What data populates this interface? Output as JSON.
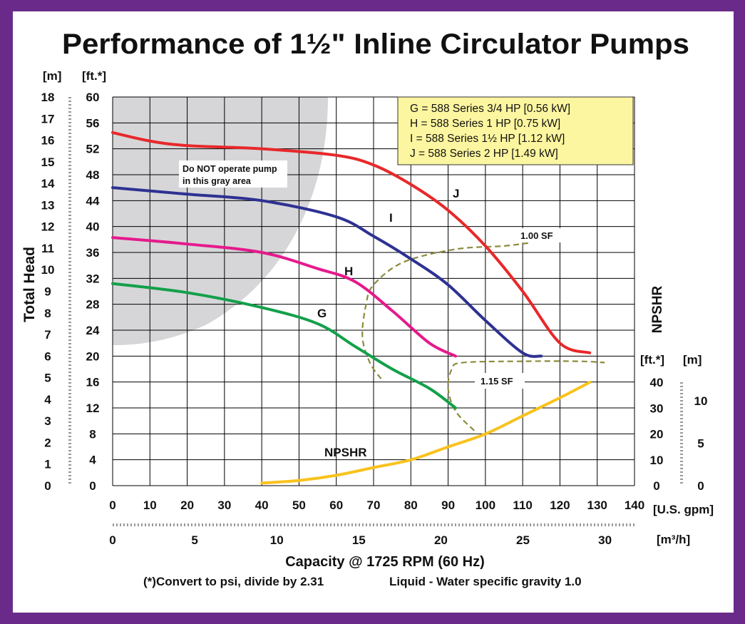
{
  "chart_data": {
    "type": "line",
    "title": "Performance of 1½\" Inline Circulator Pumps",
    "ylabel": "Total Head",
    "xlabel": "Capacity @ 1725 RPM (60 Hz)",
    "footnote_left": "(*)Convert to psi, divide by 2.31",
    "footnote_right": "Liquid - Water specific gravity 1.0",
    "x_unit": "[U.S. gpm]",
    "x2_unit": "[m³/h]",
    "y_unit_ft": "[ft.*]",
    "y_unit_m": "[m]",
    "npshr_axis_label": "NPSHR",
    "npshr_unit_ft": "[ft.*]",
    "npshr_unit_m": "[m]",
    "xlim": [
      0,
      140
    ],
    "ylim": [
      0,
      60
    ],
    "x_ticks": [
      0,
      10,
      20,
      30,
      40,
      50,
      60,
      70,
      80,
      90,
      100,
      110,
      120,
      130,
      140
    ],
    "x2_ticks": [
      0,
      5,
      10,
      15,
      20,
      25,
      30
    ],
    "y_ticks_ft": [
      0,
      4,
      8,
      12,
      16,
      20,
      24,
      28,
      32,
      36,
      40,
      44,
      48,
      52,
      56,
      60
    ],
    "y_ticks_m": [
      0,
      1,
      2,
      3,
      4,
      5,
      6,
      7,
      8,
      9,
      10,
      11,
      12,
      13,
      14,
      15,
      16,
      17,
      18
    ],
    "npshr_ticks_ft": [
      0,
      10,
      20,
      30,
      40
    ],
    "npshr_ticks_m": [
      0,
      5,
      10
    ],
    "grid": true,
    "legend": [
      "G = 588 Series  3/4 HP [0.56 kW]",
      "H = 588 Series 1 HP [0.75 kW]",
      "I = 588 Series 1½ HP [1.12 kW]",
      "J = 588 Series 2 HP [1.49 kW]"
    ],
    "legend_position": "top-right",
    "gray_area_label": [
      "Do NOT operate pump",
      "in this gray area"
    ],
    "series": [
      {
        "name": "J",
        "color": "#e8282a",
        "x": [
          0,
          10,
          20,
          40,
          60,
          70,
          80,
          90,
          100,
          110,
          120,
          128
        ],
        "y": [
          54.5,
          53.2,
          52.5,
          52,
          51,
          49.5,
          46.5,
          42.5,
          37,
          30,
          22,
          20.5
        ]
      },
      {
        "name": "I",
        "color": "#2e3192",
        "x": [
          0,
          20,
          40,
          60,
          70,
          80,
          90,
          100,
          110,
          115
        ],
        "y": [
          46,
          45,
          44,
          41.5,
          38.5,
          35,
          31,
          25.5,
          20.5,
          20
        ]
      },
      {
        "name": "H",
        "color": "#e6198c",
        "x": [
          0,
          20,
          40,
          55,
          65,
          75,
          85,
          92
        ],
        "y": [
          38.3,
          37.3,
          36,
          33.5,
          31.5,
          27,
          22,
          20
        ]
      },
      {
        "name": "G",
        "color": "#13a04a",
        "x": [
          0,
          20,
          40,
          55,
          65,
          75,
          85,
          92
        ],
        "y": [
          31.2,
          29.8,
          27.5,
          25,
          21.5,
          18,
          15,
          12
        ]
      },
      {
        "name": "NPSHR",
        "color": "#f9c21d",
        "axis": "npshr_ft",
        "x": [
          40,
          50,
          60,
          70,
          80,
          90,
          100,
          110,
          120,
          128
        ],
        "y": [
          1,
          2,
          4,
          7,
          10,
          15,
          20,
          27,
          34,
          40
        ]
      }
    ],
    "sf_lines": [
      {
        "label": "1.00 SF",
        "color": "#8c8c3c",
        "x": [
          72,
          69,
          67,
          68,
          70,
          78,
          92,
          105,
          112
        ],
        "y": [
          16.5,
          19,
          23,
          28,
          31,
          34.5,
          36.5,
          37,
          37.5
        ]
      },
      {
        "label": "1.15 SF",
        "color": "#8c8c3c",
        "x": [
          97,
          92,
          90,
          91,
          94,
          110,
          125,
          132
        ],
        "y": [
          8.5,
          11.5,
          15,
          18,
          19,
          19.2,
          19.2,
          19
        ]
      }
    ]
  }
}
